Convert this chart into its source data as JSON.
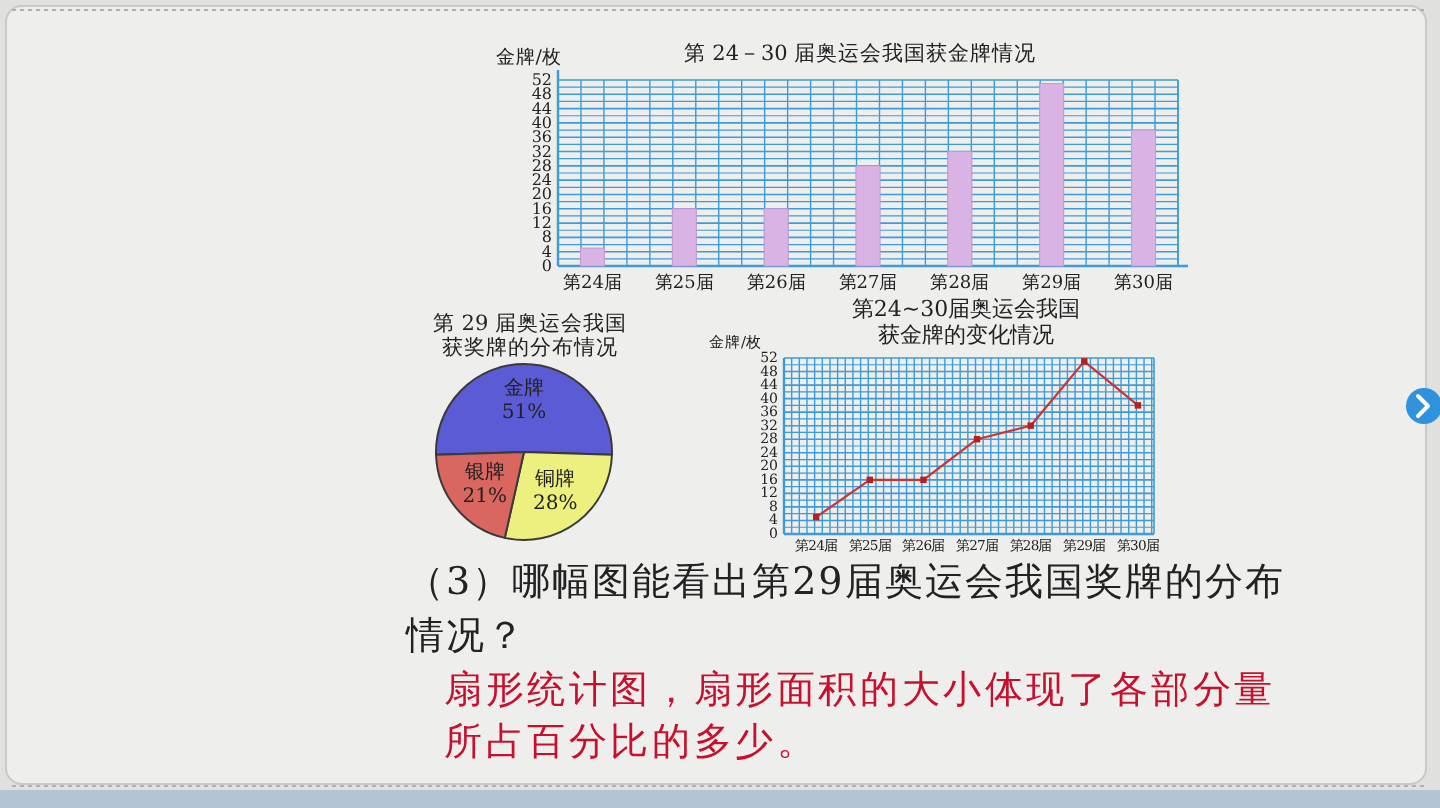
{
  "chart_data": [
    {
      "type": "bar",
      "title": "第 24－30 届奥运会我国获金牌情况",
      "ylabel": "金牌/枚",
      "categories": [
        "第24届",
        "第25届",
        "第26届",
        "第27届",
        "第28届",
        "第29届",
        "第30届"
      ],
      "values": [
        5,
        16,
        16,
        28,
        32,
        51,
        38
      ],
      "color": "#d9b3e3",
      "ylim": [
        0,
        52
      ],
      "yticks": [
        0,
        {
          "value": 2,
          "label": null
        },
        4,
        {
          "value": 6,
          "label": null
        },
        8,
        {
          "value": 10,
          "label": null
        },
        12,
        {
          "value": 14,
          "label": null
        },
        16,
        {
          "value": 18,
          "label": null
        },
        20,
        {
          "value": 22,
          "label": null
        },
        24,
        {
          "value": 26,
          "label": null
        },
        28,
        {
          "value": 30,
          "label": null
        },
        32,
        {
          "value": 34,
          "label": null
        },
        36,
        {
          "value": 38,
          "label": null
        },
        40,
        {
          "value": 42,
          "label": null
        },
        44,
        {
          "value": 46,
          "label": null
        },
        48,
        {
          "value": 50,
          "label": null
        },
        52
      ],
      "grid": true
    },
    {
      "type": "pie",
      "title": "第 29 届奥运会我国获奖牌的分布情况",
      "categories": [
        "金牌",
        "铜牌",
        "银牌"
      ],
      "values": [
        51,
        28,
        21
      ],
      "colors": [
        "#5b5bd6",
        "#edf07e",
        "#d9665f"
      ],
      "value_labels": [
        "51%",
        "28%",
        "21%"
      ]
    },
    {
      "type": "line",
      "title": "第24~30届奥运会我国获金牌的变化情况",
      "ylabel": "金牌/枚",
      "categories": [
        "第24届",
        "第25届",
        "第26届",
        "第27届",
        "第28届",
        "第29届",
        "第30届"
      ],
      "values": [
        5,
        16,
        16,
        28,
        32,
        51,
        38
      ],
      "color": "#cc3333",
      "marker": "square",
      "ylim": [
        0,
        52
      ],
      "yticks": [
        0,
        {
          "value": 2,
          "label": null
        },
        4,
        {
          "value": 6,
          "label": null
        },
        8,
        {
          "value": 10,
          "label": null
        },
        12,
        {
          "value": 14,
          "label": null
        },
        16,
        {
          "value": 18,
          "label": null
        },
        20,
        {
          "value": 22,
          "label": null
        },
        24,
        {
          "value": 26,
          "label": null
        },
        28,
        {
          "value": 30,
          "label": null
        },
        32,
        {
          "value": 34,
          "label": null
        },
        36,
        {
          "value": 38,
          "label": null
        },
        40,
        {
          "value": 42,
          "label": null
        },
        44,
        {
          "value": 46,
          "label": null
        },
        48,
        {
          "value": 50,
          "label": null
        },
        52
      ],
      "grid": true
    },
    {
      "type": "other",
      "annotations": [
        "（3）哪幅图能看出第29届奥运会我国奖牌的分布情况？",
        "扇形统计图，扇形面积的大小体现了各部分量所占百分比的多少。"
      ]
    }
  ]
}
